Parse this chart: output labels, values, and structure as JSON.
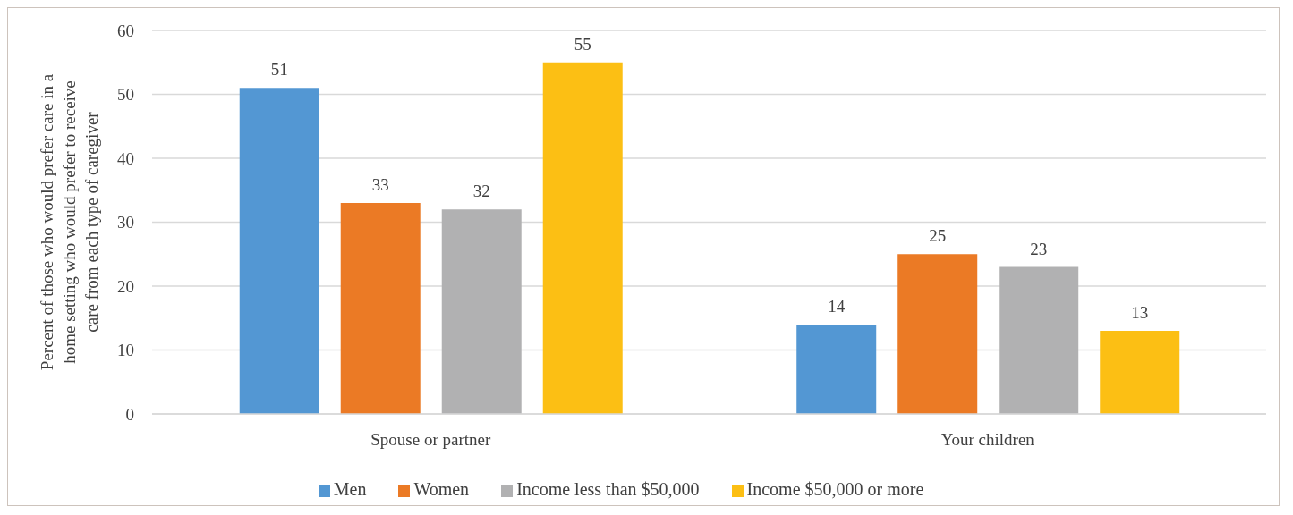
{
  "chart_data": {
    "type": "bar",
    "ylabel": "Percent of those who would prefer care in a home setting who would prefer to receive care from each type of caregiver",
    "categories": [
      "Spouse or partner",
      "Your children"
    ],
    "series": [
      {
        "name": "Men",
        "color": "#5397d3",
        "values": [
          51,
          14
        ]
      },
      {
        "name": "Women",
        "color": "#eb7a25",
        "values": [
          33,
          25
        ]
      },
      {
        "name": "Income less than $50,000",
        "color": "#b1b1b2",
        "values": [
          32,
          23
        ]
      },
      {
        "name": "Income $50,000 or more",
        "color": "#fcbf14",
        "values": [
          55,
          13
        ]
      }
    ],
    "ylim": [
      0,
      60
    ],
    "yticks": [
      0,
      10,
      20,
      30,
      40,
      50,
      60
    ],
    "grid": "y",
    "legend": "bottom",
    "data_labels": true
  }
}
